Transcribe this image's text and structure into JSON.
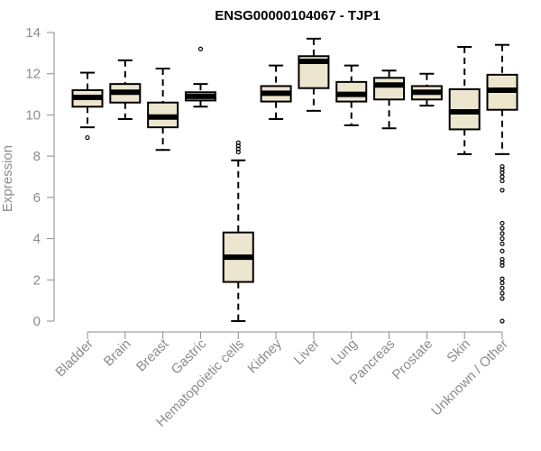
{
  "chart_data": {
    "type": "boxplot",
    "title": "ENSG00000104067 - TJP1",
    "xlabel": "",
    "ylabel": "Expression",
    "ylim": [
      0,
      14
    ],
    "yticks": [
      0,
      2,
      4,
      6,
      8,
      10,
      12,
      14
    ],
    "grid": false,
    "colors": {
      "box_fill": "#ede6cf",
      "stroke": "#000000",
      "axis": "#8c8c8c"
    },
    "categories": [
      "Bladder",
      "Brain",
      "Breast",
      "Gastric",
      "Hematopoietic cells",
      "Kidney",
      "Liver",
      "Lung",
      "Pancreas",
      "Prostate",
      "Skin",
      "Unknown / Other"
    ],
    "series": [
      {
        "name": "Bladder",
        "whisker_low": 9.4,
        "q1": 10.4,
        "median": 10.85,
        "q3": 11.2,
        "whisker_high": 12.05,
        "outliers": [
          8.9
        ]
      },
      {
        "name": "Brain",
        "whisker_low": 9.8,
        "q1": 10.6,
        "median": 11.1,
        "q3": 11.5,
        "whisker_high": 12.65,
        "outliers": []
      },
      {
        "name": "Breast",
        "whisker_low": 8.3,
        "q1": 9.4,
        "median": 9.9,
        "q3": 10.6,
        "whisker_high": 12.25,
        "outliers": []
      },
      {
        "name": "Gastric",
        "whisker_low": 10.4,
        "q1": 10.7,
        "median": 10.9,
        "q3": 11.1,
        "whisker_high": 11.5,
        "outliers": [
          13.2
        ]
      },
      {
        "name": "Hematopoietic cells",
        "whisker_low": 0.0,
        "q1": 1.9,
        "median": 3.1,
        "q3": 4.3,
        "whisker_high": 7.8,
        "outliers": [
          8.2,
          8.35,
          8.5,
          8.65
        ]
      },
      {
        "name": "Kidney",
        "whisker_low": 9.8,
        "q1": 10.65,
        "median": 11.05,
        "q3": 11.4,
        "whisker_high": 12.4,
        "outliers": []
      },
      {
        "name": "Liver",
        "whisker_low": 10.2,
        "q1": 11.3,
        "median": 12.6,
        "q3": 12.85,
        "whisker_high": 13.7,
        "outliers": []
      },
      {
        "name": "Lung",
        "whisker_low": 9.5,
        "q1": 10.65,
        "median": 11.0,
        "q3": 11.6,
        "whisker_high": 12.4,
        "outliers": []
      },
      {
        "name": "Pancreas",
        "whisker_low": 9.35,
        "q1": 10.75,
        "median": 11.45,
        "q3": 11.8,
        "whisker_high": 12.15,
        "outliers": []
      },
      {
        "name": "Prostate",
        "whisker_low": 10.45,
        "q1": 10.75,
        "median": 11.1,
        "q3": 11.4,
        "whisker_high": 12.0,
        "outliers": []
      },
      {
        "name": "Skin",
        "whisker_low": 8.1,
        "q1": 9.3,
        "median": 10.15,
        "q3": 11.25,
        "whisker_high": 13.3,
        "outliers": []
      },
      {
        "name": "Unknown / Other",
        "whisker_low": 8.1,
        "q1": 10.25,
        "median": 11.2,
        "q3": 11.95,
        "whisker_high": 13.4,
        "outliers": [
          7.5,
          7.35,
          7.2,
          7.0,
          6.8,
          6.35,
          4.75,
          4.5,
          4.25,
          4.0,
          3.75,
          3.4,
          3.0,
          2.85,
          2.7,
          2.05,
          1.85,
          1.6,
          1.35,
          1.1,
          0.0
        ]
      }
    ]
  }
}
